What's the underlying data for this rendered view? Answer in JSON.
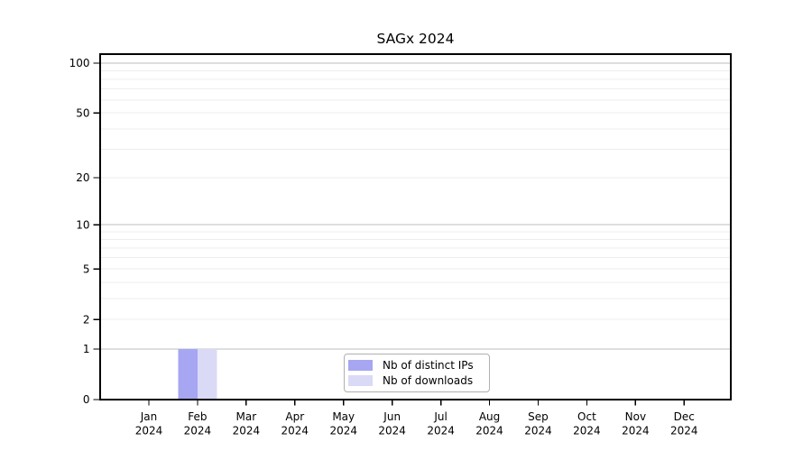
{
  "chart_data": {
    "type": "bar",
    "title": "SAGx 2024",
    "categories": [
      "Jan",
      "Feb",
      "Mar",
      "Apr",
      "May",
      "Jun",
      "Jul",
      "Aug",
      "Sep",
      "Oct",
      "Nov",
      "Dec"
    ],
    "category_sublabel": "2024",
    "series": [
      {
        "name": "Nb of distinct IPs",
        "color": "#a6a6f2",
        "values": [
          0,
          1,
          0,
          0,
          0,
          0,
          0,
          0,
          0,
          0,
          0,
          0
        ]
      },
      {
        "name": "Nb of downloads",
        "color": "#dadaf7",
        "values": [
          0,
          1,
          0,
          0,
          0,
          0,
          0,
          0,
          0,
          0,
          0,
          0
        ]
      }
    ],
    "y_axis": {
      "scale": "log1p",
      "range": [
        0,
        100
      ],
      "ticks": [
        0,
        1,
        2,
        5,
        10,
        20,
        50,
        100
      ],
      "minor_gridlines": [
        2,
        3,
        4,
        5,
        6,
        7,
        8,
        9,
        20,
        30,
        40,
        50,
        60,
        70,
        80,
        90
      ],
      "major_gridlines": [
        1,
        10,
        100
      ]
    },
    "legend": {
      "position": "bottom-center",
      "entries": [
        "Nb of distinct IPs",
        "Nb of downloads"
      ]
    },
    "colors": {
      "grid_minor": "#ededed",
      "grid_major": "#bdbdbd",
      "axis": "#000000",
      "text": "#000000",
      "background": "#ffffff"
    }
  }
}
